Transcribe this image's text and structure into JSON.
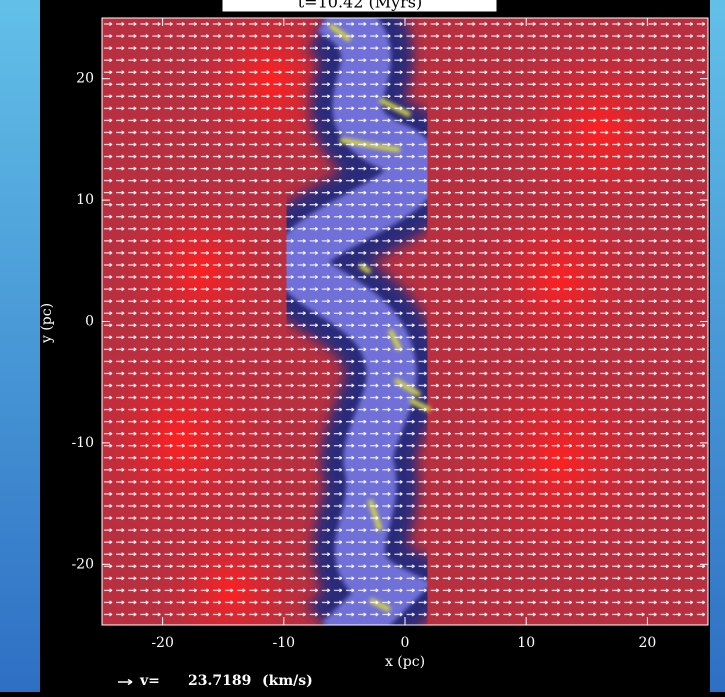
{
  "chart_data": {
    "type": "quiver",
    "title": "t=10.42 (Myrs)",
    "x_label": "x (pc)",
    "y_label": "y (pc)",
    "xlim": [
      -25,
      25
    ],
    "ylim": [
      -25,
      25
    ],
    "xticks": [
      -20,
      -10,
      0,
      10,
      20
    ],
    "yticks": [
      -20,
      -10,
      0,
      10,
      20
    ],
    "reference_vector": {
      "label": "v=",
      "value": 23.7189,
      "unit": "(km/s)"
    }
  }
}
